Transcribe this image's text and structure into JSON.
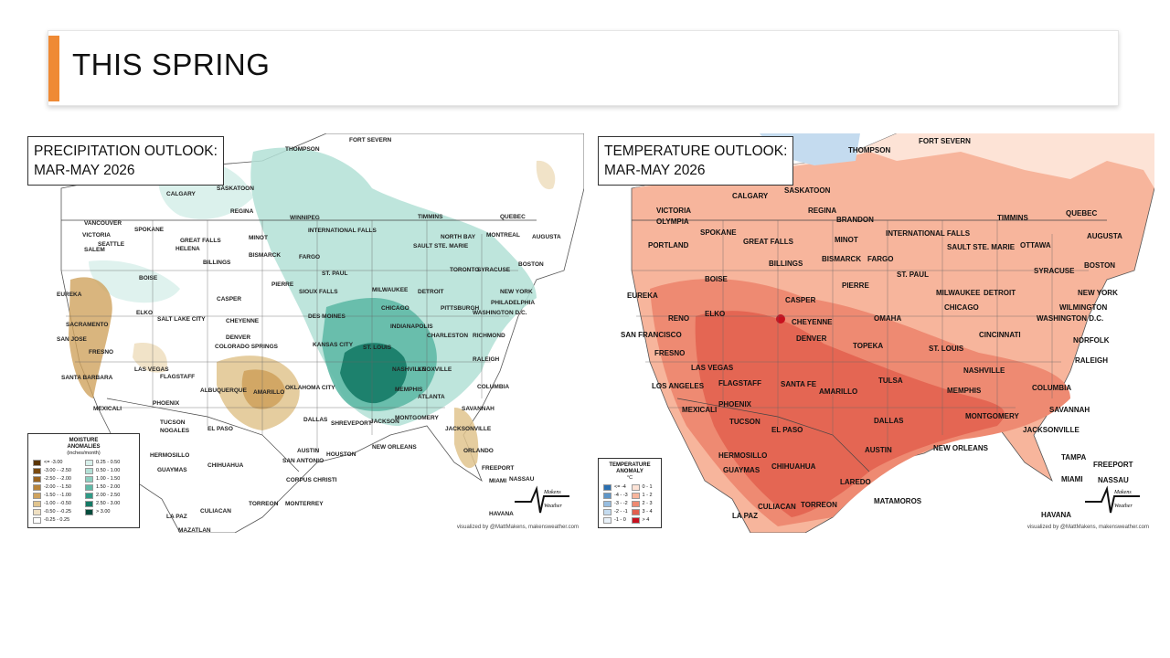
{
  "header": {
    "title": "THIS SPRING",
    "accent_color": "#ef8a35"
  },
  "precip_map": {
    "title_line1": "PRECIPITATION OUTLOOK:",
    "title_line2": "MAR-MAY 2026",
    "legend": {
      "title_line1": "MOISTURE",
      "title_line2": "ANOMALIES",
      "subtitle": "(inches/month)",
      "items": [
        {
          "label": "<= -3.00",
          "color": "#5a3505"
        },
        {
          "label": "0.25 - 0.50",
          "color": "#d7efea"
        },
        {
          "label": "-3.00 - -2.50",
          "color": "#7a4a10"
        },
        {
          "label": "0.50 - 1.00",
          "color": "#b3e0d6"
        },
        {
          "label": "-2.50 - -2.00",
          "color": "#9a6420"
        },
        {
          "label": "1.00 - 1.50",
          "color": "#8ccfc0"
        },
        {
          "label": "-2.00 - -1.50",
          "color": "#b8843a"
        },
        {
          "label": "1.50 - 2.00",
          "color": "#5fb9a6"
        },
        {
          "label": "-1.50 - -1.00",
          "color": "#cfa35e"
        },
        {
          "label": "2.00 - 2.50",
          "color": "#2f9a86"
        },
        {
          "label": "-1.00 - -0.50",
          "color": "#e0c48e"
        },
        {
          "label": "2.50 - 3.00",
          "color": "#157a66"
        },
        {
          "label": "-0.50 - -0.25",
          "color": "#efe0c2"
        },
        {
          "label": "> 3.00",
          "color": "#044c3c"
        },
        {
          "label": "-0.25 - 0.25",
          "color": "#ffffff"
        }
      ]
    },
    "cities": [
      {
        "name": "THOMPSON"
      },
      {
        "name": "FORT SEVERN"
      },
      {
        "name": "CALGARY"
      },
      {
        "name": "SASKATOON"
      },
      {
        "name": "VANCOUVER"
      },
      {
        "name": "VICTORIA"
      },
      {
        "name": "SEATTLE"
      },
      {
        "name": "REGINA"
      },
      {
        "name": "WINNIPEG"
      },
      {
        "name": "TIMMINS"
      },
      {
        "name": "QUEBEC"
      },
      {
        "name": "SPOKANE"
      },
      {
        "name": "GREAT FALLS"
      },
      {
        "name": "MINOT"
      },
      {
        "name": "INTERNATIONAL FALLS"
      },
      {
        "name": "NORTH BAY"
      },
      {
        "name": "MONTREAL"
      },
      {
        "name": "AUGUSTA"
      },
      {
        "name": "HELENA"
      },
      {
        "name": "BISMARCK"
      },
      {
        "name": "FARGO"
      },
      {
        "name": "SAULT STE. MARIE"
      },
      {
        "name": "SALEM"
      },
      {
        "name": "BILLINGS"
      },
      {
        "name": "TORONTO"
      },
      {
        "name": "SYRACUSE"
      },
      {
        "name": "BOSTON"
      },
      {
        "name": "BOISE"
      },
      {
        "name": "ST. PAUL"
      },
      {
        "name": "PIERRE"
      },
      {
        "name": "EUREKA"
      },
      {
        "name": "SIOUX FALLS"
      },
      {
        "name": "MILWAUKEE"
      },
      {
        "name": "DETROIT"
      },
      {
        "name": "CASPER"
      },
      {
        "name": "NEW YORK"
      },
      {
        "name": "PHILADELPHIA"
      },
      {
        "name": "CHICAGO"
      },
      {
        "name": "PITTSBURGH"
      },
      {
        "name": "ELKO"
      },
      {
        "name": "WASHINGTON D.C."
      },
      {
        "name": "SALT LAKE CITY"
      },
      {
        "name": "CHEYENNE"
      },
      {
        "name": "DES MOINES"
      },
      {
        "name": "SACRAMENTO"
      },
      {
        "name": "INDIANAPOLIS"
      },
      {
        "name": "CHARLESTON"
      },
      {
        "name": "RICHMOND"
      },
      {
        "name": "SAN JOSE"
      },
      {
        "name": "DENVER"
      },
      {
        "name": "KANSAS CITY"
      },
      {
        "name": "ST. LOUIS"
      },
      {
        "name": "FRESNO"
      },
      {
        "name": "COLORADO SPRINGS"
      },
      {
        "name": "LAS VEGAS"
      },
      {
        "name": "RALEIGH"
      },
      {
        "name": "NASHVILLE"
      },
      {
        "name": "KNOXVILLE"
      },
      {
        "name": "SANTA BARBARA"
      },
      {
        "name": "FLAGSTAFF"
      },
      {
        "name": "ALBUQUERQUE"
      },
      {
        "name": "AMARILLO"
      },
      {
        "name": "OKLAHOMA CITY"
      },
      {
        "name": "MEMPHIS"
      },
      {
        "name": "COLUMBIA"
      },
      {
        "name": "ATLANTA"
      },
      {
        "name": "PHOENIX"
      },
      {
        "name": "MEXICALI"
      },
      {
        "name": "SAVANNAH"
      },
      {
        "name": "TUCSON"
      },
      {
        "name": "DALLAS"
      },
      {
        "name": "SHREVEPORT"
      },
      {
        "name": "JACKSON"
      },
      {
        "name": "MONTGOMERY"
      },
      {
        "name": "NOGALES"
      },
      {
        "name": "EL PASO"
      },
      {
        "name": "JACKSONVILLE"
      },
      {
        "name": "HERMOSILLO"
      },
      {
        "name": "AUSTIN"
      },
      {
        "name": "HOUSTON"
      },
      {
        "name": "NEW ORLEANS"
      },
      {
        "name": "SAN ANTONIO"
      },
      {
        "name": "ORLANDO"
      },
      {
        "name": "GUAYMAS"
      },
      {
        "name": "CHIHUAHUA"
      },
      {
        "name": "CORPUS CHRISTI"
      },
      {
        "name": "FREEPORT"
      },
      {
        "name": "MIAMI"
      },
      {
        "name": "NASSAU"
      },
      {
        "name": "CULIACAN"
      },
      {
        "name": "TORREON"
      },
      {
        "name": "MONTERREY"
      },
      {
        "name": "HAVANA"
      },
      {
        "name": "LA PAZ"
      },
      {
        "name": "MAZATLAN"
      }
    ],
    "credit": "visualized by @MattMakens, makensweather.com"
  },
  "temp_map": {
    "title_line1": "TEMPERATURE OUTLOOK:",
    "title_line2": "MAR-MAY 2026",
    "legend": {
      "title_line1": "TEMPERATURE",
      "title_line2": "ANOMALY",
      "subtitle": "°C",
      "items": [
        {
          "label": "<= -4",
          "color": "#2a6fb0"
        },
        {
          "label": "0 - 1",
          "color": "#fde3d6"
        },
        {
          "label": "-4 - -3",
          "color": "#5f96c8"
        },
        {
          "label": "1 - 2",
          "color": "#f7b59c"
        },
        {
          "label": "-3 - -2",
          "color": "#97bde0"
        },
        {
          "label": "2 - 3",
          "color": "#ee8a72"
        },
        {
          "label": "-2 - -1",
          "color": "#c4dbef"
        },
        {
          "label": "3 - 4",
          "color": "#e25f4e"
        },
        {
          "label": "-1 - 0",
          "color": "#e8f1f9"
        },
        {
          "label": "> 4",
          "color": "#c8101e"
        }
      ]
    },
    "cities": [
      {
        "name": "THOMPSON"
      },
      {
        "name": "FORT SEVERN"
      },
      {
        "name": "CALGARY"
      },
      {
        "name": "SASKATOON"
      },
      {
        "name": "VICTORIA"
      },
      {
        "name": "OLYMPIA"
      },
      {
        "name": "REGINA"
      },
      {
        "name": "BRANDON"
      },
      {
        "name": "TIMMINS"
      },
      {
        "name": "QUEBEC"
      },
      {
        "name": "SPOKANE"
      },
      {
        "name": "GREAT FALLS"
      },
      {
        "name": "MINOT"
      },
      {
        "name": "INTERNATIONAL FALLS"
      },
      {
        "name": "PORTLAND"
      },
      {
        "name": "BISMARCK"
      },
      {
        "name": "FARGO"
      },
      {
        "name": "SAULT STE. MARIE"
      },
      {
        "name": "OTTAWA"
      },
      {
        "name": "AUGUSTA"
      },
      {
        "name": "BILLINGS"
      },
      {
        "name": "SYRACUSE"
      },
      {
        "name": "BOSTON"
      },
      {
        "name": "BOISE"
      },
      {
        "name": "PIERRE"
      },
      {
        "name": "ST. PAUL"
      },
      {
        "name": "EUREKA"
      },
      {
        "name": "MILWAUKEE"
      },
      {
        "name": "DETROIT"
      },
      {
        "name": "NEW YORK"
      },
      {
        "name": "CASPER"
      },
      {
        "name": "CHICAGO"
      },
      {
        "name": "WILMINGTON"
      },
      {
        "name": "RENO"
      },
      {
        "name": "ELKO"
      },
      {
        "name": "CHEYENNE"
      },
      {
        "name": "OMAHA"
      },
      {
        "name": "WASHINGTON D.C."
      },
      {
        "name": "SAN FRANCISCO"
      },
      {
        "name": "DENVER"
      },
      {
        "name": "CINCINNATI"
      },
      {
        "name": "NORFOLK"
      },
      {
        "name": "FRESNO"
      },
      {
        "name": "TOPEKA"
      },
      {
        "name": "ST. LOUIS"
      },
      {
        "name": "LAS VEGAS"
      },
      {
        "name": "RALEIGH"
      },
      {
        "name": "NASHVILLE"
      },
      {
        "name": "TULSA"
      },
      {
        "name": "LOS ANGELES"
      },
      {
        "name": "FLAGSTAFF"
      },
      {
        "name": "SANTA FE"
      },
      {
        "name": "AMARILLO"
      },
      {
        "name": "MEMPHIS"
      },
      {
        "name": "COLUMBIA"
      },
      {
        "name": "MEXICALI"
      },
      {
        "name": "PHOENIX"
      },
      {
        "name": "SAVANNAH"
      },
      {
        "name": "DALLAS"
      },
      {
        "name": "MONTGOMERY"
      },
      {
        "name": "TUCSON"
      },
      {
        "name": "EL PASO"
      },
      {
        "name": "JACKSONVILLE"
      },
      {
        "name": "AUSTIN"
      },
      {
        "name": "NEW ORLEANS"
      },
      {
        "name": "HERMOSILLO"
      },
      {
        "name": "GUAYMAS"
      },
      {
        "name": "CHIHUAHUA"
      },
      {
        "name": "TAMPA"
      },
      {
        "name": "FREEPORT"
      },
      {
        "name": "LAREDO"
      },
      {
        "name": "MIAMI"
      },
      {
        "name": "NASSAU"
      },
      {
        "name": "MATAMOROS"
      },
      {
        "name": "CULIACAN"
      },
      {
        "name": "TORREON"
      },
      {
        "name": "LA PAZ"
      },
      {
        "name": "HAVANA"
      }
    ],
    "credit": "visualized by @MattMakens, makensweather.com"
  },
  "logo": {
    "line1": "Makens",
    "line2": "Weather"
  }
}
